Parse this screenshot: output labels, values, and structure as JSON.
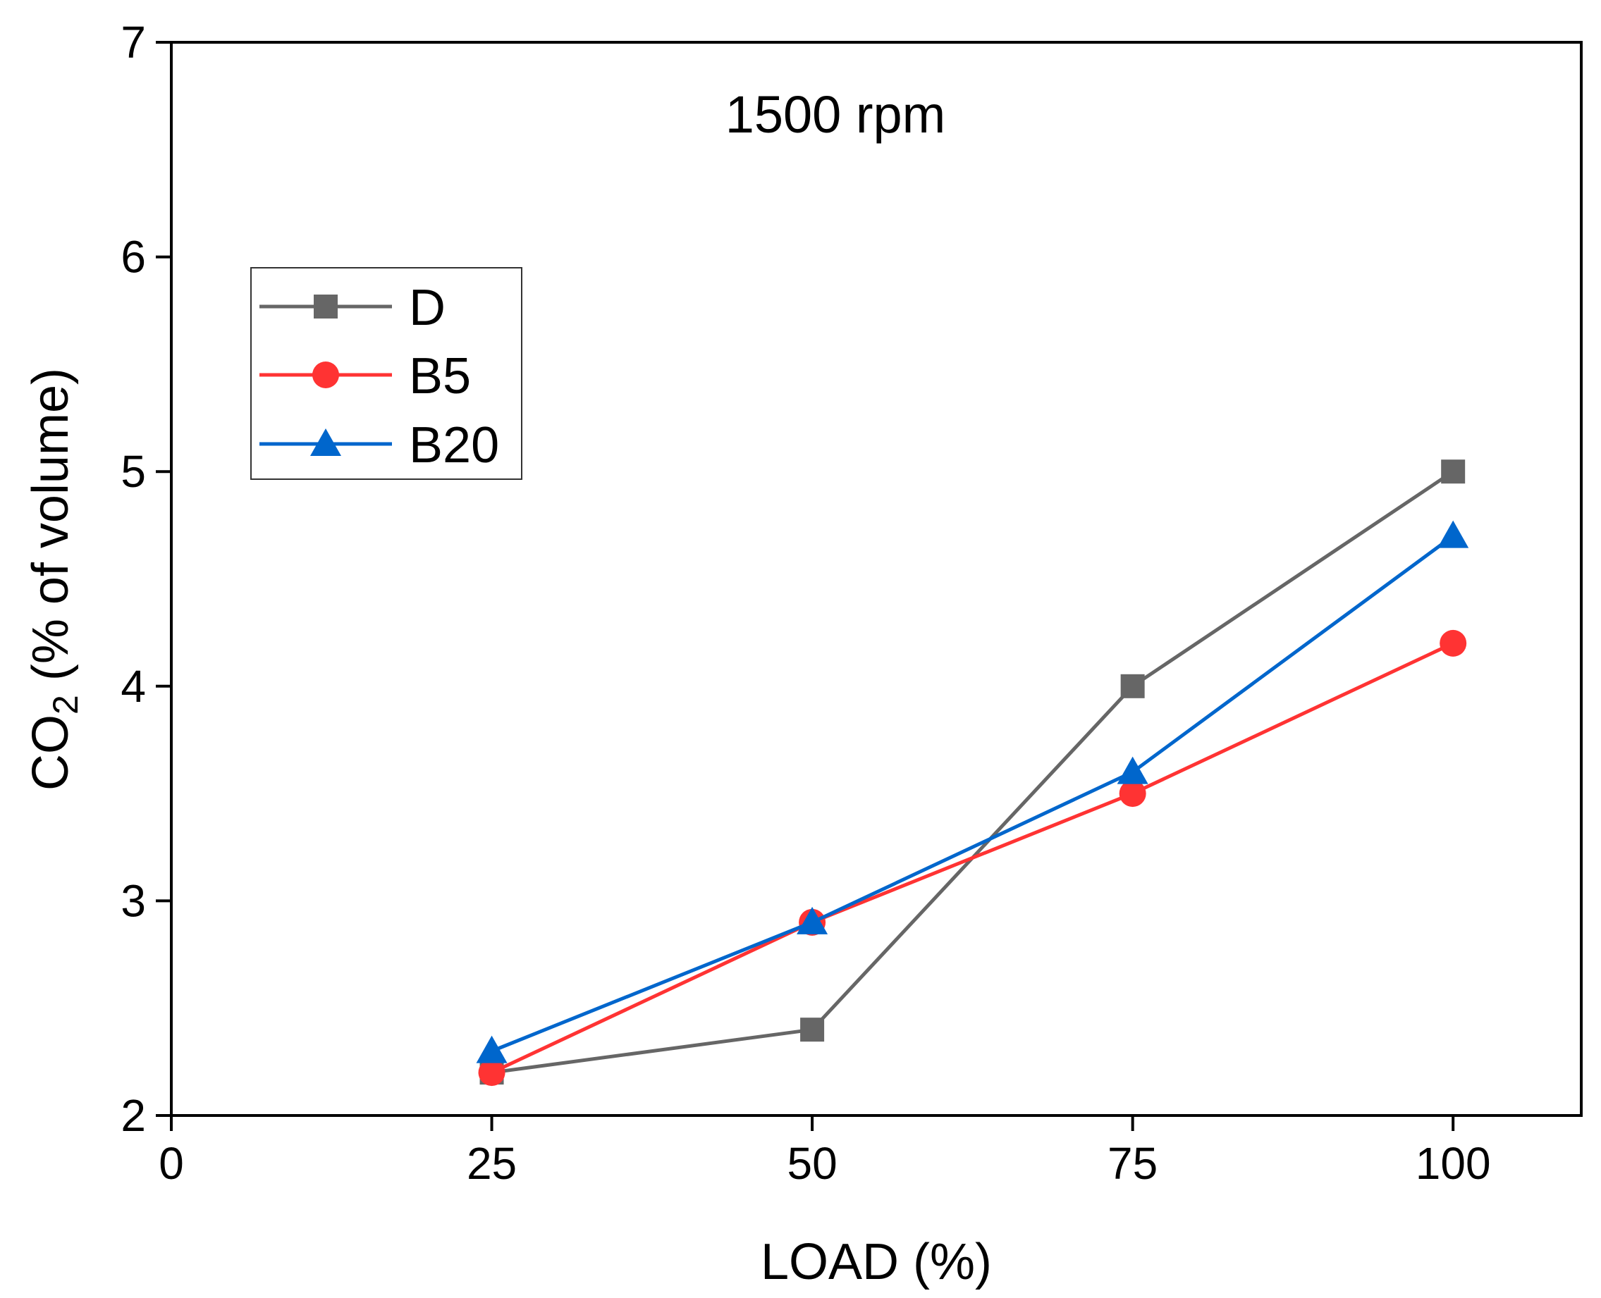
{
  "chart_data": {
    "type": "line",
    "title": "",
    "annotation": "1500 rpm",
    "xlabel": "LOAD (%)",
    "ylabel": {
      "prefix": "CO",
      "subscript": "2",
      "suffix": " (% of volume)"
    },
    "xlim": [
      0,
      110
    ],
    "ylim": [
      2,
      7
    ],
    "xticks": [
      0,
      25,
      50,
      75,
      100
    ],
    "yticks": [
      2,
      3,
      4,
      5,
      6,
      7
    ],
    "legend_position": "upper-left",
    "series": [
      {
        "name": "D",
        "color": "#666666",
        "marker": "square",
        "x": [
          25,
          50,
          75,
          100
        ],
        "y": [
          2.2,
          2.4,
          4.0,
          5.0
        ]
      },
      {
        "name": "B5",
        "color": "#ff3333",
        "marker": "circle",
        "x": [
          25,
          50,
          75,
          100
        ],
        "y": [
          2.2,
          2.9,
          3.5,
          4.2
        ]
      },
      {
        "name": "B20",
        "color": "#0066cc",
        "marker": "triangle",
        "x": [
          25,
          50,
          75,
          100
        ],
        "y": [
          2.3,
          2.9,
          3.6,
          4.7
        ]
      }
    ]
  }
}
